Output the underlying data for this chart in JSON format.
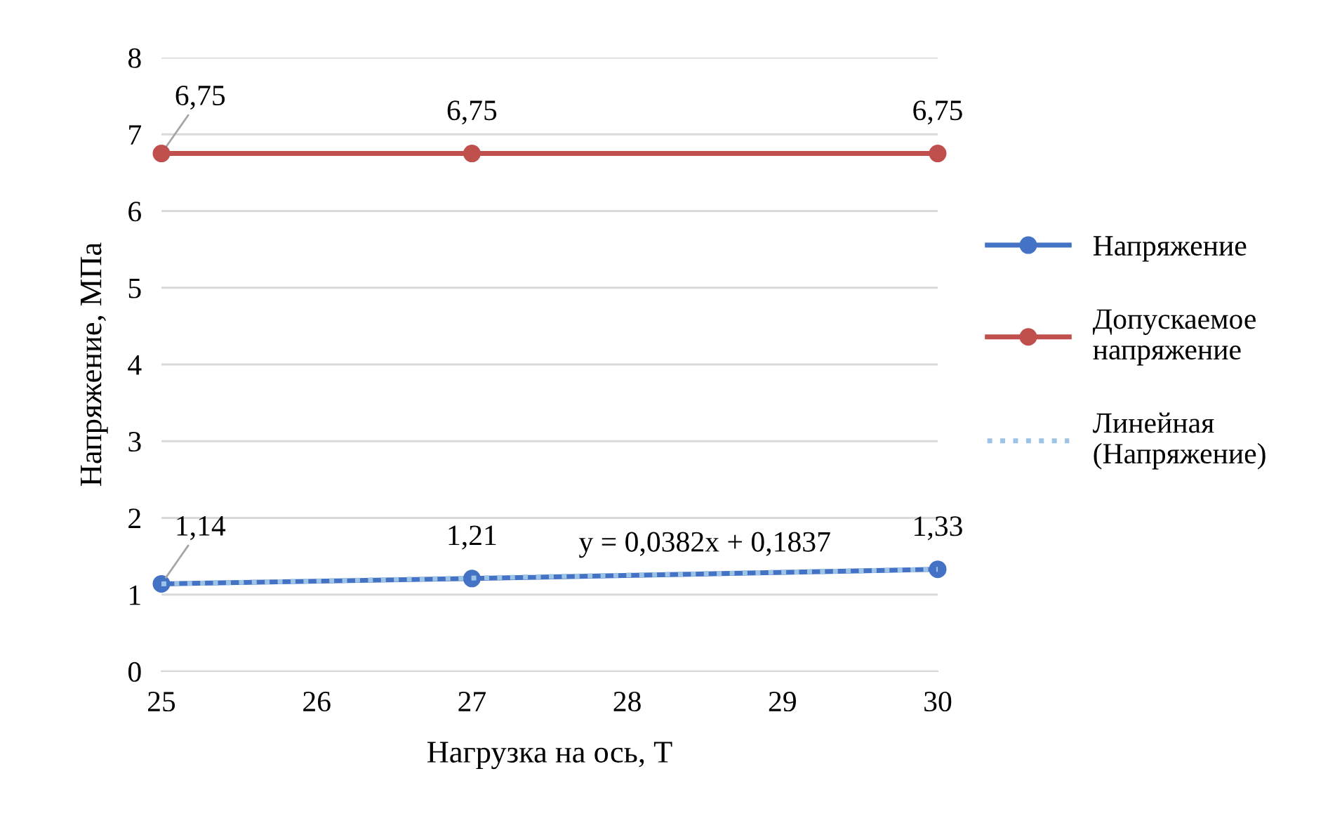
{
  "chart_data": {
    "type": "line",
    "xlabel": "Нагрузка на ось, Т",
    "ylabel": "Напряжение, МПа",
    "xlim": [
      25,
      30
    ],
    "xticks": [
      25,
      26,
      27,
      28,
      29,
      30
    ],
    "ylim": [
      0,
      8
    ],
    "yticks": [
      0,
      1,
      2,
      3,
      4,
      5,
      6,
      7,
      8
    ],
    "grid": "y",
    "legend": "right",
    "marker": "circle",
    "series": [
      {
        "name": "Напряжение",
        "color": "#4472c4",
        "x": [
          25,
          27,
          30
        ],
        "values": [
          1.14,
          1.21,
          1.33
        ],
        "value_labels": [
          "1,14",
          "1,21",
          "1,33"
        ]
      },
      {
        "name": "Допускаемое напряжение",
        "color": "#c0504d",
        "x": [
          25,
          27,
          30
        ],
        "values": [
          6.75,
          6.75,
          6.75
        ],
        "value_labels": [
          "6,75",
          "6,75",
          "6,75"
        ]
      },
      {
        "name": "Линейная (Напряжение)",
        "color": "#9dc3e6",
        "type": "line",
        "x": [
          25,
          30
        ],
        "values": [
          1.14,
          1.33
        ],
        "marker": "none",
        "line_style": "dotted"
      }
    ],
    "annotations": [
      "y = 0,0382x + 0,1837"
    ]
  }
}
